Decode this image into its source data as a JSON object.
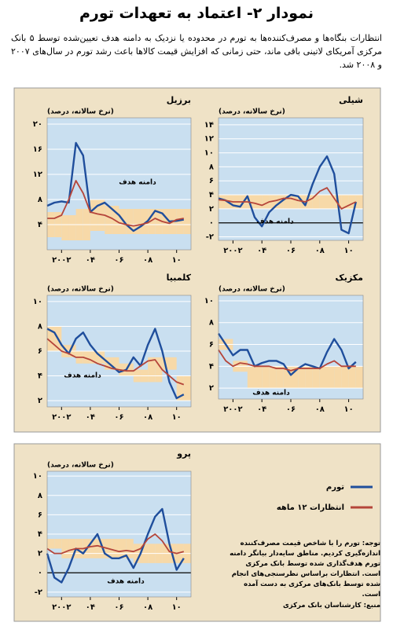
{
  "header": {
    "title": "نمودار ۲- اعتماد به تعهدات تورم",
    "intro": "انتظارات بنگاه‌ها و مصرف‌کننده‌ها به تورم در محدوده یا نزدیک به دامنه هدف تعیین‌شده توسط ۵ بانک مرکزی آمریکای لاتینی باقی ماند، حتی زمانی که افزایش قیمت کالاها باعث رشد تورم در سال‌های ۲۰۰۷ و ۲۰۰۸ شد."
  },
  "footnote": {
    "note": "توجه: تورم را با شاخص قیمت مصرف‌کننده اندازه‌گیری کردیم. مناطق سایه‌دار بیانگر دامنه تورم هدف‌گذاری شده توسط بانک مرکزی است. انتظارات براساس نظرسنجی‌های انجام شده توسط بانک‌های مرکزی به دست آمده است.",
    "source": "منبع: کارشناسان بانک مرکزی"
  },
  "chart_data": [
    {
      "type": "line",
      "title": "برزیل",
      "ylabel": "(نرخ سالانه، درصد)",
      "band_label": "دامنه هدف",
      "grid": true,
      "x": [
        2001,
        2001.5,
        2002,
        2002.5,
        2003,
        2003.5,
        2004,
        2004.5,
        2005,
        2005.5,
        2006,
        2006.5,
        2007,
        2007.5,
        2008,
        2008.5,
        2009,
        2009.5,
        2010,
        2010.5
      ],
      "series": [
        {
          "color": "#1f4e9c",
          "values": [
            7,
            7.5,
            7.7,
            7.5,
            17,
            15,
            6,
            7,
            7.5,
            6.5,
            5.5,
            4,
            3,
            3.7,
            4.6,
            6.2,
            5.8,
            4.5,
            4.6,
            4.8
          ]
        },
        {
          "color": "#b5453a",
          "values": [
            5,
            5,
            5.5,
            8,
            11,
            9,
            6,
            5.7,
            5.5,
            5,
            4.3,
            4,
            3.8,
            4,
            4.3,
            5,
            4.5,
            4.2,
            4.8,
            5
          ]
        }
      ],
      "target_band": {
        "color": "#f7d9a8",
        "lower": [
          2,
          2,
          1.5,
          1.5,
          1.5,
          1.5,
          3,
          3,
          2.5,
          2.5,
          2.5,
          2.5,
          2.5,
          2.5,
          2.5,
          2.5,
          2.5,
          2.5,
          2.5,
          2.5
        ],
        "upper": [
          6,
          6,
          5.5,
          5.5,
          6.5,
          6.5,
          8,
          8,
          7,
          7,
          6.5,
          6.5,
          6.5,
          6.5,
          6.5,
          6.5,
          6.5,
          6.5,
          6.5,
          6.5
        ]
      },
      "xlim": [
        2001,
        2011
      ],
      "xticks": [
        {
          "value": 2002,
          "label": "۲۰۰۲"
        },
        {
          "value": 2004,
          "label": "۰۴"
        },
        {
          "value": 2006,
          "label": "۰۶"
        },
        {
          "value": 2008,
          "label": "۰۸"
        },
        {
          "value": 2010,
          "label": "۱۰"
        }
      ],
      "ylim": [
        0,
        21
      ],
      "yticks": [
        {
          "value": 4,
          "label": "۴"
        },
        {
          "value": 8,
          "label": "۸"
        },
        {
          "value": 12,
          "label": "۱۲"
        },
        {
          "value": 16,
          "label": "۱۶"
        },
        {
          "value": 20,
          "label": "۲۰"
        }
      ]
    },
    {
      "type": "line",
      "title": "شیلی",
      "ylabel": "(نرخ سالانه، درصد)",
      "band_label": "دامنه هدف",
      "grid": true,
      "x": [
        2001,
        2001.5,
        2002,
        2002.5,
        2003,
        2003.5,
        2004,
        2004.5,
        2005,
        2005.5,
        2006,
        2006.5,
        2007,
        2007.5,
        2008,
        2008.5,
        2009,
        2009.5,
        2010,
        2010.5
      ],
      "series": [
        {
          "color": "#1f4e9c",
          "values": [
            3.5,
            3.2,
            2.5,
            2.3,
            3.8,
            0.8,
            -0.5,
            1.5,
            2.5,
            3.3,
            4,
            3.8,
            2.5,
            5.5,
            8,
            9.5,
            7,
            -1,
            -1.5,
            3
          ]
        },
        {
          "color": "#b5453a",
          "values": [
            3.3,
            3.2,
            3,
            3,
            3,
            2.8,
            2.5,
            3,
            3.2,
            3.5,
            3.5,
            3.2,
            3,
            3.5,
            4.5,
            5,
            3.5,
            2,
            2.5,
            3
          ]
        }
      ],
      "target_band": {
        "color": "#f7d9a8",
        "lower": [
          2,
          2,
          2,
          2,
          2,
          2,
          2,
          2,
          2,
          2,
          2,
          2,
          2,
          2,
          2,
          2,
          2,
          2,
          2,
          2
        ],
        "upper": [
          4,
          4,
          4,
          4,
          4,
          4,
          4,
          4,
          4,
          4,
          4,
          4,
          4,
          4,
          4,
          4,
          4,
          4,
          4,
          4
        ]
      },
      "xlim": [
        2001,
        2011
      ],
      "xticks": [
        {
          "value": 2002,
          "label": "۲۰۰۲"
        },
        {
          "value": 2004,
          "label": "۰۴"
        },
        {
          "value": 2006,
          "label": "۰۶"
        },
        {
          "value": 2008,
          "label": "۰۸"
        },
        {
          "value": 2010,
          "label": "۱۰"
        }
      ],
      "ylim": [
        -2.5,
        15
      ],
      "yticks": [
        {
          "value": -2,
          "label": "-۲"
        },
        {
          "value": 0,
          "label": "۰"
        },
        {
          "value": 2,
          "label": "۲"
        },
        {
          "value": 4,
          "label": "۴"
        },
        {
          "value": 6,
          "label": "۶"
        },
        {
          "value": 8,
          "label": "۸"
        },
        {
          "value": 10,
          "label": "۱۰"
        },
        {
          "value": 12,
          "label": "۱۲"
        },
        {
          "value": 14,
          "label": "۱۴"
        }
      ]
    },
    {
      "type": "line",
      "title": "کلمبیا",
      "ylabel": "(نرخ سالانه، درصد)",
      "band_label": "دامنه هدف",
      "grid": true,
      "x": [
        2001,
        2001.5,
        2002,
        2002.5,
        2003,
        2003.5,
        2004,
        2004.5,
        2005,
        2005.5,
        2006,
        2006.5,
        2007,
        2007.5,
        2008,
        2008.5,
        2009,
        2009.5,
        2010,
        2010.5
      ],
      "series": [
        {
          "color": "#1f4e9c",
          "values": [
            7.8,
            7.5,
            6.5,
            5.8,
            7,
            7.5,
            6.5,
            5.8,
            5.3,
            4.8,
            4.3,
            4.5,
            5.5,
            4.8,
            6.5,
            7.8,
            6,
            3.5,
            2.2,
            2.5
          ]
        },
        {
          "color": "#b5453a",
          "values": [
            7,
            6.5,
            6,
            5.8,
            5.5,
            5.5,
            5.3,
            5,
            4.8,
            4.6,
            4.5,
            4.4,
            4.4,
            4.8,
            5.2,
            5.3,
            4.5,
            4,
            3.5,
            3.3
          ]
        }
      ],
      "target_band": {
        "color": "#f7d9a8",
        "lower": [
          6,
          6,
          5.5,
          5.5,
          5,
          5,
          5,
          5,
          4.5,
          4.5,
          4,
          4,
          3.5,
          3.5,
          3.5,
          3.5,
          4.5,
          4.5,
          2,
          2
        ],
        "upper": [
          8,
          8,
          6.5,
          6.5,
          6,
          6,
          6,
          6,
          5.5,
          5.5,
          5,
          5,
          4.5,
          4.5,
          5.5,
          5.5,
          5.5,
          5.5,
          4,
          4
        ]
      },
      "xlim": [
        2001,
        2011
      ],
      "xticks": [
        {
          "value": 2002,
          "label": "۲۰۰۲"
        },
        {
          "value": 2004,
          "label": "۰۴"
        },
        {
          "value": 2006,
          "label": "۰۶"
        },
        {
          "value": 2008,
          "label": "۰۸"
        },
        {
          "value": 2010,
          "label": "۱۰"
        }
      ],
      "ylim": [
        1.5,
        10.5
      ],
      "yticks": [
        {
          "value": 2,
          "label": "۲"
        },
        {
          "value": 4,
          "label": "۴"
        },
        {
          "value": 6,
          "label": "۶"
        },
        {
          "value": 8,
          "label": "۸"
        },
        {
          "value": 10,
          "label": "۱۰"
        }
      ]
    },
    {
      "type": "line",
      "title": "مکزیک",
      "ylabel": "(نرخ سالانه، درصد)",
      "band_label": "دامنه هدف",
      "grid": true,
      "x": [
        2001,
        2001.5,
        2002,
        2002.5,
        2003,
        2003.5,
        2004,
        2004.5,
        2005,
        2005.5,
        2006,
        2006.5,
        2007,
        2007.5,
        2008,
        2008.5,
        2009,
        2009.5,
        2010,
        2010.5
      ],
      "series": [
        {
          "color": "#1f4e9c",
          "values": [
            7,
            6,
            5,
            5.5,
            5.5,
            4,
            4.3,
            4.5,
            4.5,
            4.2,
            3.2,
            3.8,
            4.2,
            4,
            3.8,
            5.3,
            6.5,
            5.5,
            3.8,
            4.4
          ]
        },
        {
          "color": "#b5453a",
          "values": [
            5.5,
            4.5,
            4,
            4.3,
            4.2,
            4,
            4,
            4,
            3.8,
            3.8,
            3.6,
            3.8,
            3.8,
            3.8,
            3.8,
            4.2,
            4.5,
            4,
            4,
            4
          ]
        }
      ],
      "target_band": {
        "color": "#f7d9a8",
        "lower": [
          5.5,
          5.5,
          3.5,
          3.5,
          2,
          2,
          2,
          2,
          2,
          2,
          2,
          2,
          2,
          2,
          2,
          2,
          2,
          2,
          2,
          2
        ],
        "upper": [
          6.5,
          6.5,
          4.5,
          4.5,
          4,
          4,
          4,
          4,
          4,
          4,
          4,
          4,
          4,
          4,
          4,
          4,
          4,
          4,
          4,
          4
        ]
      },
      "xlim": [
        2001,
        2011
      ],
      "xticks": [
        {
          "value": 2002,
          "label": "۲۰۰۲"
        },
        {
          "value": 2004,
          "label": "۰۴"
        },
        {
          "value": 2006,
          "label": "۰۶"
        },
        {
          "value": 2008,
          "label": "۰۸"
        },
        {
          "value": 2010,
          "label": "۱۰"
        }
      ],
      "ylim": [
        1,
        10.5
      ],
      "yticks": [
        {
          "value": 2,
          "label": "۲"
        },
        {
          "value": 4,
          "label": "۴"
        },
        {
          "value": 6,
          "label": "۶"
        },
        {
          "value": 8,
          "label": "۸"
        },
        {
          "value": 10,
          "label": "۱۰"
        }
      ]
    },
    {
      "type": "line",
      "title": "پرو",
      "ylabel": "(نرخ سالانه، درصد)",
      "band_label": "دامنه هدف",
      "grid": true,
      "x": [
        2001,
        2001.5,
        2002,
        2002.5,
        2003,
        2003.5,
        2004,
        2004.5,
        2005,
        2005.5,
        2006,
        2006.5,
        2007,
        2007.5,
        2008,
        2008.5,
        2009,
        2009.5,
        2010,
        2010.5
      ],
      "series": [
        {
          "name": "تورم",
          "color": "#1f4e9c",
          "values": [
            2,
            -0.5,
            -1,
            0.5,
            2.5,
            2,
            3,
            4,
            2,
            1.5,
            1.5,
            1.8,
            0.5,
            2,
            4,
            5.8,
            6.6,
            3,
            0.3,
            1.5
          ]
        },
        {
          "name": "انتظارات ۱۲ ماهه",
          "color": "#b5453a",
          "values": [
            2.5,
            2,
            2,
            2.3,
            2.5,
            2.5,
            2.7,
            2.8,
            2.6,
            2.4,
            2.2,
            2.3,
            2.2,
            2.5,
            3.5,
            4,
            3.3,
            2.2,
            2,
            2.2
          ]
        }
      ],
      "target_band": {
        "color": "#f7d9a8",
        "lower": [
          2.5,
          2.5,
          1.5,
          1.5,
          1.5,
          1.5,
          1.5,
          1.5,
          1.5,
          1.5,
          1.5,
          1.5,
          1,
          1,
          1,
          1,
          1,
          1,
          1,
          1
        ],
        "upper": [
          3.5,
          3.5,
          3.5,
          3.5,
          3.5,
          3.5,
          3.5,
          3.5,
          3.5,
          3.5,
          3.5,
          3.5,
          3,
          3,
          3,
          3,
          3,
          3,
          3,
          3
        ]
      },
      "xlim": [
        2001,
        2011
      ],
      "xticks": [
        {
          "value": 2002,
          "label": "۲۰۰۲"
        },
        {
          "value": 2004,
          "label": "۰۴"
        },
        {
          "value": 2006,
          "label": "۰۶"
        },
        {
          "value": 2008,
          "label": "۰۸"
        },
        {
          "value": 2010,
          "label": "۱۰"
        }
      ],
      "ylim": [
        -2.5,
        10.5
      ],
      "yticks": [
        {
          "value": -2,
          "label": "-۲"
        },
        {
          "value": 0,
          "label": "۰"
        },
        {
          "value": 2,
          "label": "۲"
        },
        {
          "value": 4,
          "label": "۴"
        },
        {
          "value": 6,
          "label": "۶"
        },
        {
          "value": 8,
          "label": "۸"
        },
        {
          "value": 10,
          "label": "۱۰"
        }
      ]
    }
  ]
}
